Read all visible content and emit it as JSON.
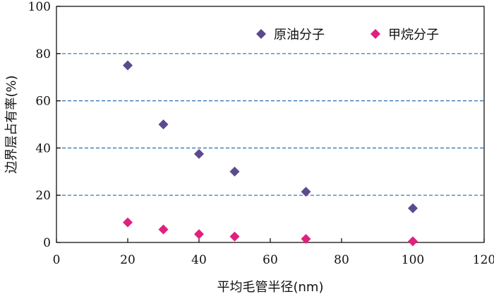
{
  "chart_data": {
    "type": "scatter",
    "title": "",
    "xlabel": "平均毛管半径(nm)",
    "ylabel": "边界层占有率(%)",
    "xlim": [
      0,
      120
    ],
    "ylim": [
      0,
      100
    ],
    "xticks": [
      0,
      20,
      40,
      60,
      80,
      100,
      120
    ],
    "yticks": [
      0,
      20,
      40,
      60,
      80,
      100
    ],
    "grid": "horizontal dashed",
    "grid_color": "#2a6fb0",
    "legend_position": "top-right",
    "series": [
      {
        "name": "原油分子",
        "marker": "diamond",
        "color": "#5b4a8e",
        "points": [
          {
            "x": 20,
            "y": 75
          },
          {
            "x": 30,
            "y": 50
          },
          {
            "x": 40,
            "y": 37.5
          },
          {
            "x": 50,
            "y": 30
          },
          {
            "x": 70,
            "y": 21.5
          },
          {
            "x": 100,
            "y": 14.5
          }
        ]
      },
      {
        "name": "甲烷分子",
        "marker": "diamond",
        "color": "#e0207e",
        "points": [
          {
            "x": 20,
            "y": 8.5
          },
          {
            "x": 30,
            "y": 5.5
          },
          {
            "x": 40,
            "y": 3.5
          },
          {
            "x": 50,
            "y": 2.5
          },
          {
            "x": 70,
            "y": 1.5
          },
          {
            "x": 100,
            "y": 0.5
          }
        ]
      }
    ]
  }
}
